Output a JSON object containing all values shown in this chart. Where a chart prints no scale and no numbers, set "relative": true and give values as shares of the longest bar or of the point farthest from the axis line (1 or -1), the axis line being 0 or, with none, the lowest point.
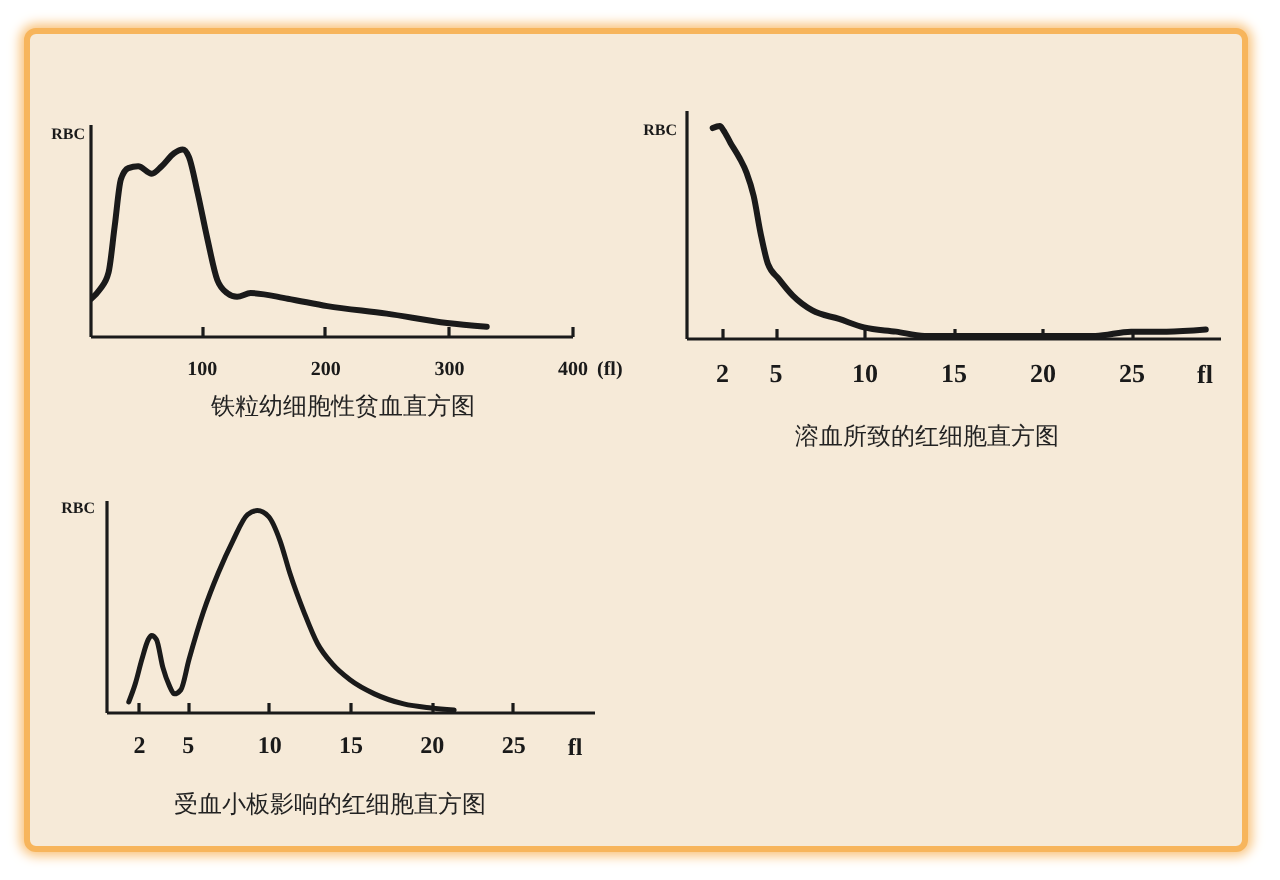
{
  "chart_data": [
    {
      "type": "line",
      "title": "铁粒幼细胞性贫血直方图",
      "ylabel": "RBC",
      "xlabel": "(fl)",
      "relative": true,
      "x": [
        11,
        18,
        25,
        30,
        35,
        41,
        49,
        60,
        68,
        78,
        85,
        90,
        97,
        105,
        113,
        121,
        129,
        140,
        170,
        202,
        250,
        299,
        331
      ],
      "series": [
        {
          "color": "#1a1a1a",
          "values": [
            0.2,
            0.25,
            0.34,
            0.59,
            0.84,
            0.9,
            0.91,
            0.87,
            0.91,
            0.98,
            1,
            0.96,
            0.77,
            0.52,
            0.3,
            0.23,
            0.21,
            0.23,
            0.2,
            0.16,
            0.12,
            0.07,
            0.05
          ]
        }
      ],
      "xlim": [
        10,
        400
      ],
      "xticks": [
        100,
        200,
        300,
        400
      ]
    },
    {
      "type": "line",
      "title": "溶血所致的红细胞直方图",
      "ylabel": "RBC",
      "xlabel": "fl",
      "relative": true,
      "x": [
        1.5,
        1.9,
        2.1,
        2.5,
        3,
        3.4,
        3.8,
        4.2,
        4.6,
        5.2,
        6,
        7.1,
        8.6,
        10,
        11.8,
        13.4,
        15,
        17.4,
        20,
        23,
        25,
        27,
        29.2
      ],
      "series": [
        {
          "color": "#1a1a1a",
          "values": [
            0.99,
            1,
            0.98,
            0.92,
            0.85,
            0.78,
            0.67,
            0.49,
            0.35,
            0.28,
            0.2,
            0.13,
            0.09,
            0.05,
            0.03,
            0.01,
            0.01,
            0.01,
            0.01,
            0.01,
            0.03,
            0.03,
            0.04
          ]
        }
      ],
      "xlim": [
        0,
        30
      ],
      "xticks": [
        2,
        5,
        10,
        15,
        20,
        25
      ]
    },
    {
      "type": "line",
      "title": "受血小板影响的红细胞直方图",
      "ylabel": "RBC",
      "xlabel": "fl",
      "relative": true,
      "x": [
        1.4,
        1.8,
        2.2,
        2.6,
        2.8,
        3.1,
        3.5,
        3.9,
        4.2,
        4.6,
        5.1,
        6,
        6.9,
        7.8,
        8.7,
        9.3,
        10,
        10.7,
        11.3,
        12.2,
        13,
        13.9,
        15,
        16.5,
        18.3,
        20,
        21.4
      ],
      "series": [
        {
          "color": "#1a1a1a",
          "values": [
            0.05,
            0.14,
            0.26,
            0.36,
            0.38,
            0.36,
            0.22,
            0.13,
            0.09,
            0.11,
            0.26,
            0.5,
            0.69,
            0.85,
            0.98,
            1,
            0.97,
            0.85,
            0.69,
            0.49,
            0.34,
            0.24,
            0.16,
            0.09,
            0.04,
            0.02,
            0.01
          ]
        }
      ],
      "xlim": [
        0,
        30
      ],
      "xticks": [
        2,
        5,
        10,
        15,
        20,
        25
      ]
    }
  ]
}
